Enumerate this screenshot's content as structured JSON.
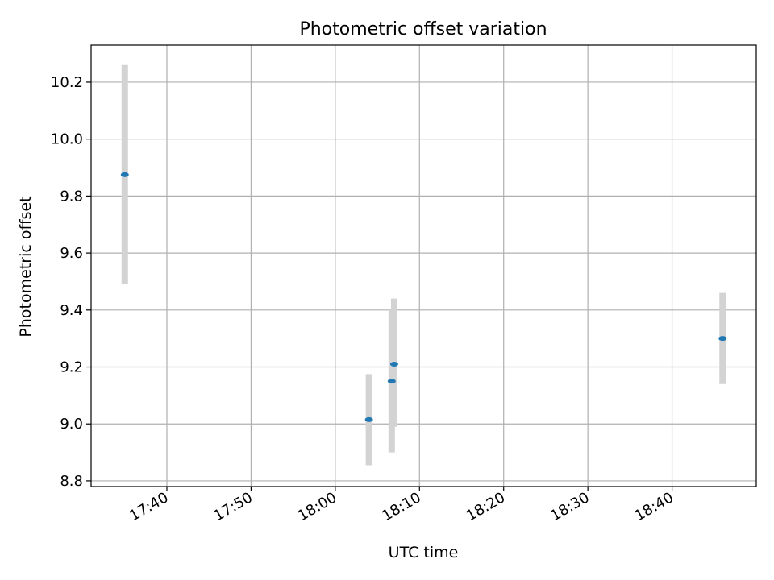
{
  "chart_data": {
    "type": "scatter",
    "title": "Photometric offset variation",
    "xlabel": "UTC time",
    "ylabel": "Photometric offset",
    "x_ticks": [
      "17:40",
      "17:50",
      "18:00",
      "18:10",
      "18:20",
      "18:30",
      "18:40"
    ],
    "y_ticks": [
      "8.8",
      "9.0",
      "9.2",
      "9.4",
      "9.6",
      "9.8",
      "10.0",
      "10.2"
    ],
    "xlim": [
      "17:31",
      "18:50"
    ],
    "ylim": [
      8.78,
      10.33
    ],
    "grid": true,
    "colors": {
      "point": "#1f77b4",
      "errorbar": "#d3d3d3",
      "grid": "#b0b0b0"
    },
    "points": [
      {
        "x": "17:35",
        "y": 9.875,
        "yerr_low": 9.49,
        "yerr_high": 10.26
      },
      {
        "x": "18:04",
        "y": 9.015,
        "yerr_low": 8.855,
        "yerr_high": 9.175
      },
      {
        "x": "18:06.7",
        "y": 9.15,
        "yerr_low": 8.9,
        "yerr_high": 9.4
      },
      {
        "x": "18:07",
        "y": 9.21,
        "yerr_low": 8.99,
        "yerr_high": 9.44
      },
      {
        "x": "18:46",
        "y": 9.3,
        "yerr_low": 9.14,
        "yerr_high": 9.46
      }
    ]
  }
}
